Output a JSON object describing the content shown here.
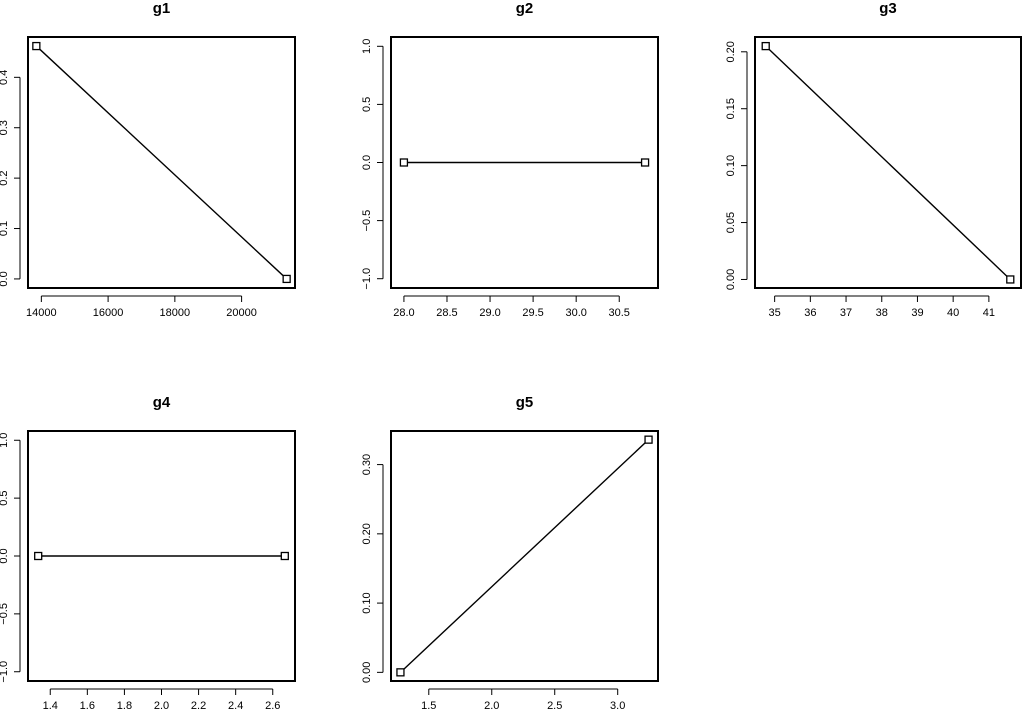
{
  "chart_data": [
    {
      "type": "line",
      "title": "g1",
      "xlabel": "",
      "ylabel": "",
      "x": [
        13850,
        21350
      ],
      "values": [
        0.462,
        0.0
      ],
      "xlim": [
        13600,
        21600
      ],
      "ylim": [
        -0.018,
        0.48
      ],
      "xticks": [
        14000,
        16000,
        18000,
        20000
      ],
      "xtick_labels": [
        "14000",
        "16000",
        "18000",
        "20000"
      ],
      "yticks": [
        0.0,
        0.1,
        0.2,
        0.3,
        0.4
      ],
      "ytick_labels": [
        "0.0",
        "0.1",
        "0.2",
        "0.3",
        "0.4"
      ],
      "markers": "open-square",
      "grid": false
    },
    {
      "type": "line",
      "title": "g2",
      "xlabel": "",
      "ylabel": "",
      "x": [
        28.0,
        30.8
      ],
      "values": [
        0.0,
        0.0
      ],
      "xlim": [
        27.85,
        30.95
      ],
      "ylim": [
        -1.08,
        1.08
      ],
      "xticks": [
        28.0,
        28.5,
        29.0,
        29.5,
        30.0,
        30.5
      ],
      "xtick_labels": [
        "28.0",
        "28.5",
        "29.0",
        "29.5",
        "30.0",
        "30.5"
      ],
      "yticks": [
        -1.0,
        -0.5,
        0.0,
        0.5,
        1.0
      ],
      "ytick_labels": [
        "−1.0",
        "−0.5",
        "0.0",
        "0.5",
        "1.0"
      ],
      "markers": "open-square",
      "grid": false
    },
    {
      "type": "line",
      "title": "g3",
      "xlabel": "",
      "ylabel": "",
      "x": [
        34.75,
        41.6
      ],
      "values": [
        0.205,
        0.0
      ],
      "xlim": [
        34.45,
        41.9
      ],
      "ylim": [
        -0.0075,
        0.213
      ],
      "xticks": [
        35,
        36,
        37,
        38,
        39,
        40,
        41
      ],
      "xtick_labels": [
        "35",
        "36",
        "37",
        "38",
        "39",
        "40",
        "41"
      ],
      "yticks": [
        0.0,
        0.05,
        0.1,
        0.15,
        0.2
      ],
      "ytick_labels": [
        "0.00",
        "0.05",
        "0.10",
        "0.15",
        "0.20"
      ],
      "markers": "open-square",
      "grid": false
    },
    {
      "type": "line",
      "title": "g4",
      "xlabel": "",
      "ylabel": "",
      "x": [
        1.335,
        2.665
      ],
      "values": [
        0.0,
        0.0
      ],
      "xlim": [
        1.28,
        2.72
      ],
      "ylim": [
        -1.08,
        1.08
      ],
      "xticks": [
        1.4,
        1.6,
        1.8,
        2.0,
        2.2,
        2.4,
        2.6
      ],
      "xtick_labels": [
        "1.4",
        "1.6",
        "1.8",
        "2.0",
        "2.2",
        "2.4",
        "2.6"
      ],
      "yticks": [
        -1.0,
        -0.5,
        0.0,
        0.5,
        1.0
      ],
      "ytick_labels": [
        "−1.0",
        "−0.5",
        "0.0",
        "0.5",
        "1.0"
      ],
      "markers": "open-square",
      "grid": false
    },
    {
      "type": "line",
      "title": "g5",
      "xlabel": "",
      "ylabel": "",
      "x": [
        1.275,
        3.245
      ],
      "values": [
        0.0,
        0.336
      ],
      "xlim": [
        1.2,
        3.32
      ],
      "ylim": [
        -0.0125,
        0.3485
      ],
      "xticks": [
        1.5,
        2.0,
        2.5,
        3.0
      ],
      "xtick_labels": [
        "1.5",
        "2.0",
        "2.5",
        "3.0"
      ],
      "yticks": [
        0.0,
        0.1,
        0.2,
        0.3
      ],
      "ytick_labels": [
        "0.00",
        "0.10",
        "0.20",
        "0.30"
      ],
      "markers": "open-square",
      "grid": false
    }
  ]
}
